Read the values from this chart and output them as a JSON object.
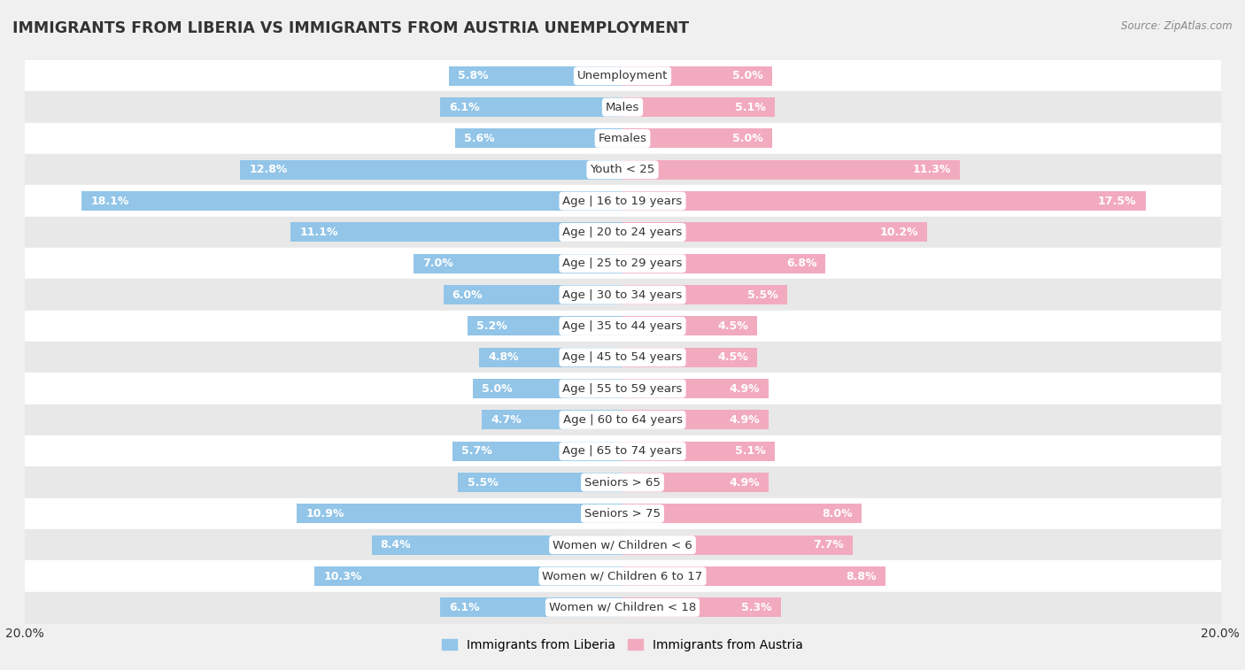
{
  "title": "IMMIGRANTS FROM LIBERIA VS IMMIGRANTS FROM AUSTRIA UNEMPLOYMENT",
  "source": "Source: ZipAtlas.com",
  "categories": [
    "Unemployment",
    "Males",
    "Females",
    "Youth < 25",
    "Age | 16 to 19 years",
    "Age | 20 to 24 years",
    "Age | 25 to 29 years",
    "Age | 30 to 34 years",
    "Age | 35 to 44 years",
    "Age | 45 to 54 years",
    "Age | 55 to 59 years",
    "Age | 60 to 64 years",
    "Age | 65 to 74 years",
    "Seniors > 65",
    "Seniors > 75",
    "Women w/ Children < 6",
    "Women w/ Children 6 to 17",
    "Women w/ Children < 18"
  ],
  "liberia_values": [
    5.8,
    6.1,
    5.6,
    12.8,
    18.1,
    11.1,
    7.0,
    6.0,
    5.2,
    4.8,
    5.0,
    4.7,
    5.7,
    5.5,
    10.9,
    8.4,
    10.3,
    6.1
  ],
  "austria_values": [
    5.0,
    5.1,
    5.0,
    11.3,
    17.5,
    10.2,
    6.8,
    5.5,
    4.5,
    4.5,
    4.9,
    4.9,
    5.1,
    4.9,
    8.0,
    7.7,
    8.8,
    5.3
  ],
  "liberia_color": "#92C5E8",
  "austria_color": "#F2AABF",
  "bar_height": 0.62,
  "x_max": 20.0,
  "background_color": "#f0f0f0",
  "row_bg_light": "#ffffff",
  "row_bg_dark": "#e8e8e8",
  "label_fontsize": 9.5,
  "title_fontsize": 12.5,
  "value_fontsize": 9,
  "legend_label_liberia": "Immigrants from Liberia",
  "legend_label_austria": "Immigrants from Austria"
}
